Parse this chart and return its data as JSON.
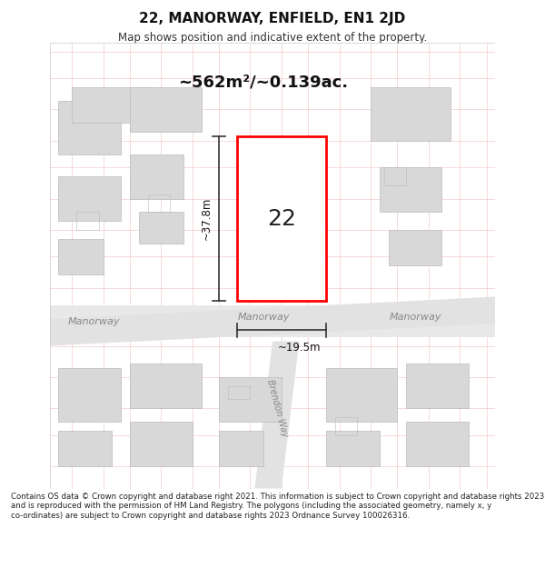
{
  "title": "22, MANORWAY, ENFIELD, EN1 2JD",
  "subtitle": "Map shows position and indicative extent of the property.",
  "area_text": "~562m²/~0.139ac.",
  "house_number": "22",
  "dim_width": "~19.5m",
  "dim_height": "~37.8m",
  "road_left": "Manorway",
  "road_center": "Manorway",
  "road_right": "Manorway",
  "road_diagonal": "Brendon Way",
  "footer": "Contains OS data © Crown copyright and database right 2021. This information is subject to Crown copyright and database rights 2023 and is reproduced with the permission of HM Land Registry. The polygons (including the associated geometry, namely x, y co-ordinates) are subject to Crown copyright and database rights 2023 Ordnance Survey 100026316.",
  "bg_color": "#ffffff",
  "map_bg": "#f5f5f5",
  "road_color": "#e8e8e8",
  "grid_line_color": "#f0c0c0",
  "building_color": "#d8d8d8",
  "building_edge_color": "#bbbbbb",
  "highlight_color": "#ff0000",
  "highlight_fill": "#ffffff",
  "dim_line_color": "#333333",
  "text_color": "#333333",
  "road_text_color": "#888888"
}
